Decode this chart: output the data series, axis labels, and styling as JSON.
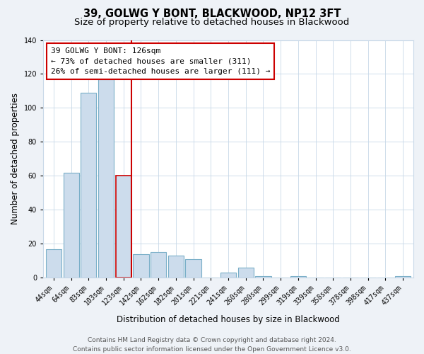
{
  "title": "39, GOLWG Y BONT, BLACKWOOD, NP12 3FT",
  "subtitle": "Size of property relative to detached houses in Blackwood",
  "xlabel": "Distribution of detached houses by size in Blackwood",
  "ylabel": "Number of detached properties",
  "bar_labels": [
    "44sqm",
    "64sqm",
    "83sqm",
    "103sqm",
    "123sqm",
    "142sqm",
    "162sqm",
    "182sqm",
    "201sqm",
    "221sqm",
    "241sqm",
    "260sqm",
    "280sqm",
    "299sqm",
    "319sqm",
    "339sqm",
    "358sqm",
    "378sqm",
    "398sqm",
    "417sqm",
    "437sqm"
  ],
  "bar_values": [
    17,
    62,
    109,
    117,
    60,
    14,
    15,
    13,
    11,
    0,
    3,
    6,
    1,
    0,
    1,
    0,
    0,
    0,
    0,
    0,
    1
  ],
  "bar_color": "#ccdcec",
  "bar_edge_color": "#7aafc8",
  "highlight_bar_index": 4,
  "highlight_bar_edge_color": "#cc0000",
  "highlight_line_color": "#cc0000",
  "annotation_text": "39 GOLWG Y BONT: 126sqm\n← 73% of detached houses are smaller (311)\n26% of semi-detached houses are larger (111) →",
  "annotation_box_color": "#ffffff",
  "annotation_box_edge_color": "#cc0000",
  "ylim": [
    0,
    140
  ],
  "yticks": [
    0,
    20,
    40,
    60,
    80,
    100,
    120,
    140
  ],
  "footer_text": "Contains HM Land Registry data © Crown copyright and database right 2024.\nContains public sector information licensed under the Open Government Licence v3.0.",
  "bg_color": "#eef2f7",
  "plot_bg_color": "#ffffff",
  "grid_color": "#c8d8e8",
  "title_fontsize": 10.5,
  "subtitle_fontsize": 9.5,
  "xlabel_fontsize": 8.5,
  "ylabel_fontsize": 8.5,
  "tick_fontsize": 7,
  "annotation_fontsize": 8,
  "footer_fontsize": 6.5
}
